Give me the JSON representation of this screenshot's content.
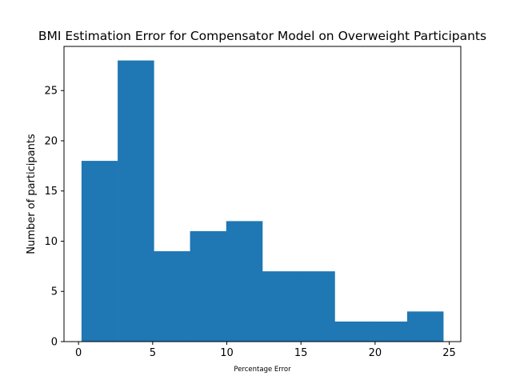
{
  "chart_data": {
    "type": "bar",
    "title": "BMI Estimation Error for Compensator Model on Overweight Participants",
    "xlabel": "Percentage Error",
    "ylabel": "Number of participants",
    "bin_edges": [
      0.2,
      2.64,
      5.08,
      7.52,
      9.96,
      12.4,
      14.84,
      17.28,
      19.72,
      22.16,
      24.6
    ],
    "values": [
      18,
      28,
      9,
      11,
      12,
      7,
      7,
      2,
      2,
      3
    ],
    "xlim": [
      -0.98,
      25.78
    ],
    "ylim": [
      0,
      29.4
    ],
    "xticks": [
      0,
      5,
      10,
      15,
      20,
      25
    ],
    "yticks": [
      0,
      5,
      10,
      15,
      20,
      25
    ],
    "bar_color": "#1f77b4",
    "grid": false
  }
}
